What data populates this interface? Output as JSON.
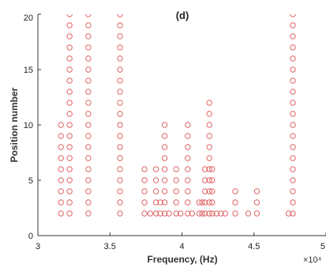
{
  "chart_data": {
    "type": "scatter",
    "title": "(d)",
    "xlabel": "Frequency, (Hz)",
    "ylabel": "Position number",
    "x_exponent_label": "×10⁴",
    "xlim": [
      3,
      5
    ],
    "ylim": [
      0,
      20
    ],
    "x_ticks": [
      3,
      3.5,
      4,
      4.5,
      5
    ],
    "x_tick_labels": [
      "3",
      "3.5",
      "4",
      "4.5",
      "5"
    ],
    "y_ticks": [
      0,
      5,
      10,
      15,
      20
    ],
    "y_tick_labels": [
      "0",
      "5",
      "10",
      "15",
      "20"
    ],
    "grid": false,
    "marker": "open-circle",
    "marker_color": "#e06666",
    "axis_color": "#333333",
    "columns": [
      {
        "x": 3.16,
        "ymin": 2,
        "ymax": 10
      },
      {
        "x": 3.22,
        "ymin": 2,
        "ymax": 20
      },
      {
        "x": 3.35,
        "ymin": 2,
        "ymax": 20
      },
      {
        "x": 3.57,
        "ymin": 2,
        "ymax": 20
      },
      {
        "x": 3.74,
        "ymin": 2,
        "ymax": 6
      },
      {
        "x": 3.78,
        "ymin": 2,
        "ymax": 2
      },
      {
        "x": 3.82,
        "ymin": 2,
        "ymax": 6
      },
      {
        "x": 3.85,
        "ymin": 2,
        "ymax": 3
      },
      {
        "x": 3.88,
        "ymin": 2,
        "ymax": 10
      },
      {
        "x": 3.91,
        "ymin": 2,
        "ymax": 2
      },
      {
        "x": 3.96,
        "ymin": 2,
        "ymax": 6
      },
      {
        "x": 3.99,
        "ymin": 2,
        "ymax": 2
      },
      {
        "x": 4.04,
        "ymin": 2,
        "ymax": 10
      },
      {
        "x": 4.07,
        "ymin": 2,
        "ymax": 2
      },
      {
        "x": 4.12,
        "ymin": 2,
        "ymax": 3
      },
      {
        "x": 4.14,
        "ymin": 2,
        "ymax": 3
      },
      {
        "x": 4.16,
        "ymin": 2,
        "ymax": 6
      },
      {
        "x": 4.19,
        "ymin": 2,
        "ymax": 12
      },
      {
        "x": 4.21,
        "ymin": 2,
        "ymax": 6
      },
      {
        "x": 4.24,
        "ymin": 2,
        "ymax": 2
      },
      {
        "x": 4.27,
        "ymin": 2,
        "ymax": 2
      },
      {
        "x": 4.3,
        "ymin": 2,
        "ymax": 2
      },
      {
        "x": 4.37,
        "ymin": 2,
        "ymax": 4
      },
      {
        "x": 4.46,
        "ymin": 2,
        "ymax": 2
      },
      {
        "x": 4.52,
        "ymin": 2,
        "ymax": 4
      },
      {
        "x": 4.74,
        "ymin": 2,
        "ymax": 2
      },
      {
        "x": 4.77,
        "ymin": 2,
        "ymax": 20
      }
    ]
  }
}
